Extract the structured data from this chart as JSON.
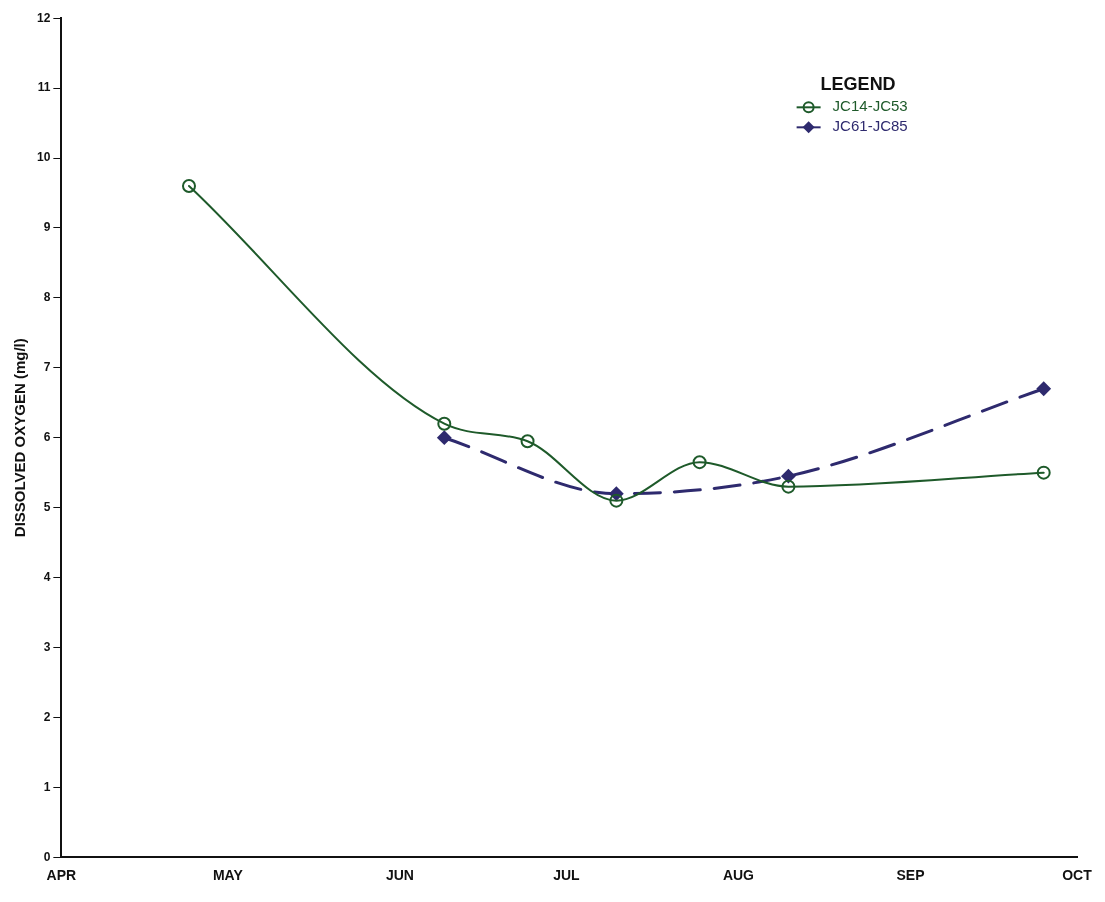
{
  "chart_data": {
    "type": "line",
    "ylabel": "DISSOLVED OXYGEN (mg/l)",
    "xlim": [
      "--04-01",
      "--10-01"
    ],
    "xticks": [
      {
        "value": "--04-01",
        "label": "APR"
      },
      {
        "value": "--05-01",
        "label": "MAY"
      },
      {
        "value": "--06-01",
        "label": "JUN"
      },
      {
        "value": "--07-01",
        "label": "JUL"
      },
      {
        "value": "--08-01",
        "label": "AUG"
      },
      {
        "value": "--09-01",
        "label": "SEP"
      },
      {
        "value": "--10-01",
        "label": "OCT"
      }
    ],
    "ylim": [
      0,
      12
    ],
    "yticks": [
      0,
      1,
      2,
      3,
      4,
      5,
      6,
      7,
      8,
      9,
      10,
      11,
      12
    ],
    "grid": false,
    "legend": "top right",
    "legend_title": "LEGEND",
    "series": [
      {
        "name": "JC14-JC53",
        "color": "#1e5a2a",
        "marker": "circle",
        "line_style": "solid",
        "x": [
          "--04-24",
          "--06-09",
          "--06-24",
          "--07-10",
          "--07-25",
          "--08-10",
          "--09-25"
        ],
        "values": [
          9.6,
          6.2,
          5.95,
          5.1,
          5.65,
          5.3,
          5.5
        ]
      },
      {
        "name": "JC61-JC85",
        "color": "#2e2a6e",
        "marker": "diamond",
        "line_style": "dashed",
        "x": [
          "--06-09",
          "--07-10",
          "--08-10",
          "--09-25"
        ],
        "values": [
          6.0,
          5.2,
          5.45,
          6.7
        ]
      }
    ]
  }
}
